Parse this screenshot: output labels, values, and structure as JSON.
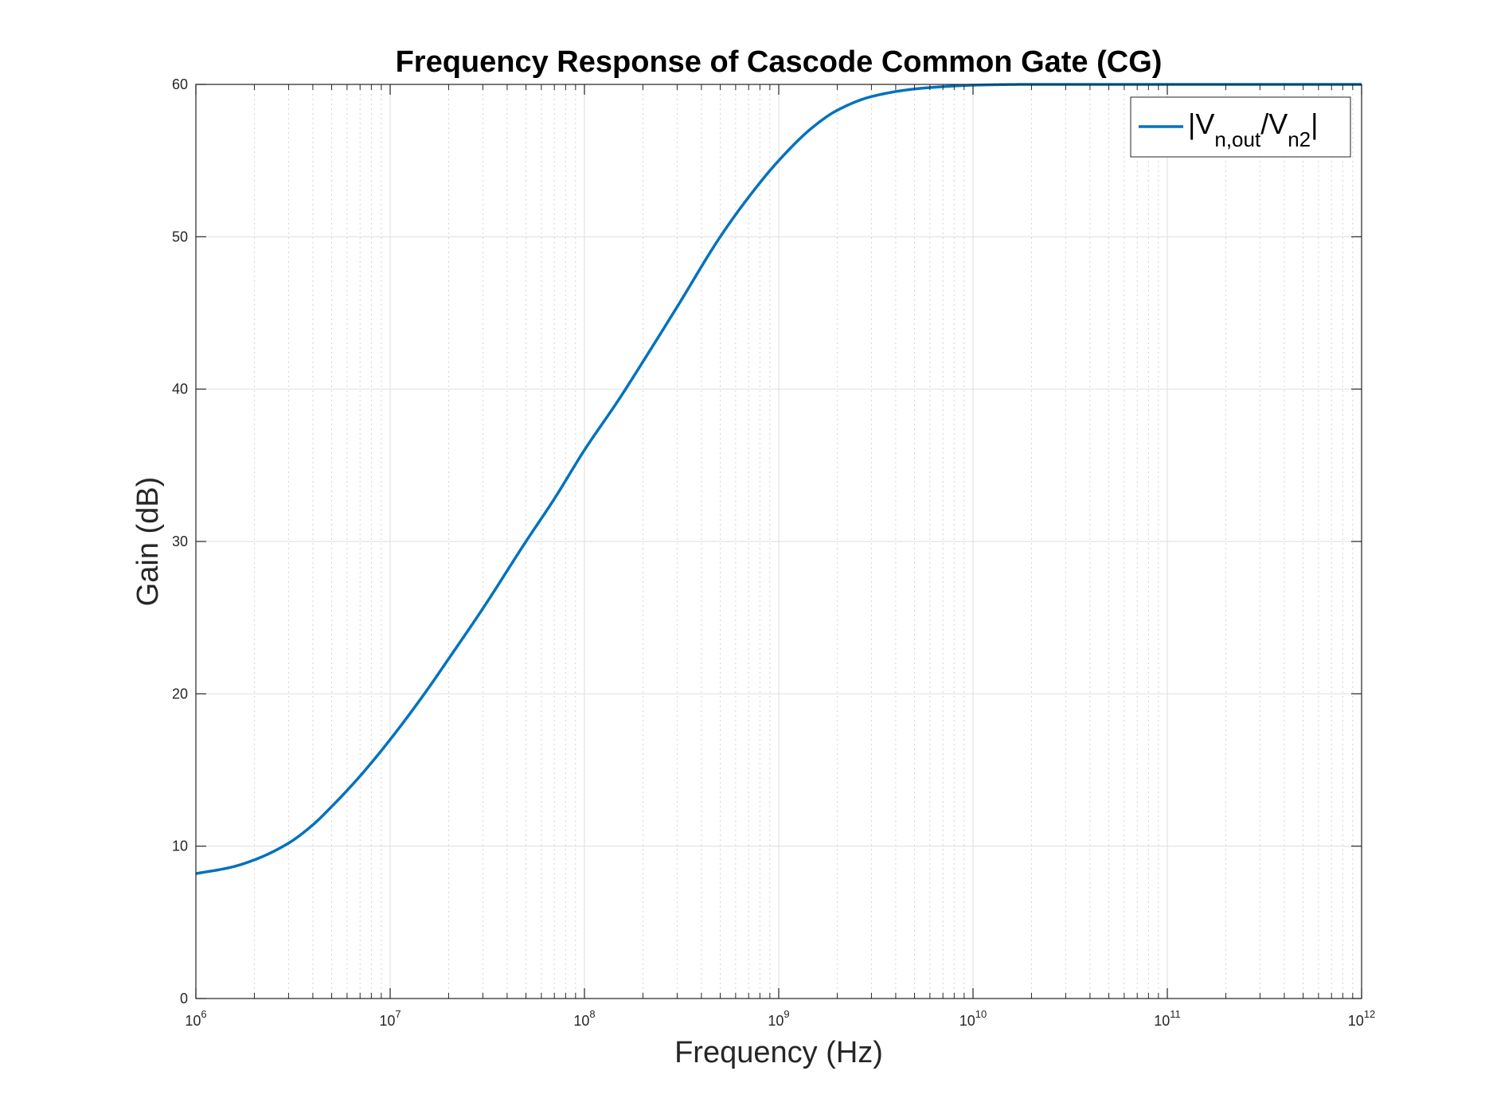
{
  "chart_data": {
    "type": "line",
    "title": "Frequency Response of Cascode Common Gate (CG)",
    "xlabel": "Frequency (Hz)",
    "ylabel": "Gain (dB)",
    "xscale": "log",
    "xlim": [
      1000000,
      1000000000000
    ],
    "ylim": [
      0,
      60
    ],
    "xticks": [
      {
        "value": 1000000,
        "base": "10",
        "exp": "6"
      },
      {
        "value": 10000000,
        "base": "10",
        "exp": "7"
      },
      {
        "value": 100000000,
        "base": "10",
        "exp": "8"
      },
      {
        "value": 1000000000,
        "base": "10",
        "exp": "9"
      },
      {
        "value": 10000000000,
        "base": "10",
        "exp": "10"
      },
      {
        "value": 100000000000,
        "base": "10",
        "exp": "11"
      },
      {
        "value": 1000000000000,
        "base": "10",
        "exp": "12"
      }
    ],
    "yticks": [
      0,
      10,
      20,
      30,
      40,
      50,
      60
    ],
    "grid": true,
    "minor_grid": true,
    "legend_position": "top-right",
    "colors": {
      "series": "#0072BD",
      "grid": "#e3e3e3",
      "axis": "#262626"
    },
    "series": [
      {
        "legend": {
          "prefix": "|V",
          "sub1": "n,out",
          "mid": "/V",
          "sub2": "n2",
          "suffix": "|"
        },
        "x": [
          1000000,
          1500000,
          2000000,
          3000000,
          4000000,
          5000000,
          7000000,
          10000000,
          15000000,
          20000000,
          30000000,
          50000000,
          70000000,
          100000000,
          150000000,
          200000000,
          300000000,
          500000000,
          700000000,
          1000000000,
          1500000000,
          2000000000,
          3000000000,
          5000000000,
          7000000000,
          10000000000,
          20000000000,
          100000000000,
          1000000000000
        ],
        "y": [
          8.2,
          8.6,
          9.1,
          10.2,
          11.4,
          12.6,
          14.6,
          17.0,
          20.0,
          22.3,
          25.6,
          30.0,
          32.8,
          36.0,
          39.3,
          41.8,
          45.4,
          50.0,
          52.6,
          55.0,
          57.2,
          58.3,
          59.2,
          59.7,
          59.85,
          59.95,
          60.0,
          60.0,
          60.0
        ]
      }
    ]
  }
}
